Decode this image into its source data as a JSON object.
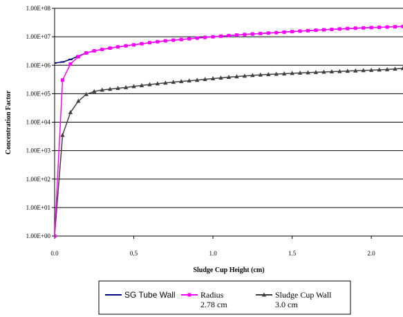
{
  "chart_data": {
    "type": "line",
    "xlabel": "Sludge Cup Height (cm)",
    "ylabel": "Concentration Factor",
    "xlim": [
      0,
      2.2
    ],
    "ylim": [
      1,
      100000000
    ],
    "yscale": "log",
    "grid": true,
    "legend_position": "bottom",
    "x_ticks": [
      "0.0",
      "0.5",
      "1.0",
      "1.5",
      "2.0"
    ],
    "x_tick_values": [
      0,
      0.5,
      1.0,
      1.5,
      2.0
    ],
    "y_ticks": [
      "1.00E+00",
      "1.00E+01",
      "1.00E+02",
      "1.00E+03",
      "1.00E+04",
      "1.00E+05",
      "1.00E+06",
      "1.00E+07",
      "1.00E+08"
    ],
    "y_tick_values": [
      1,
      10,
      100,
      1000,
      10000,
      100000,
      1000000,
      10000000,
      100000000
    ],
    "series": [
      {
        "name": "SG Tube Wall",
        "color": "#000080",
        "marker": "dash",
        "x": [
          0.0,
          0.05,
          0.1,
          0.15,
          0.2,
          0.25,
          0.3,
          0.35,
          0.4,
          0.45,
          0.5,
          0.55,
          0.6,
          0.65,
          0.7,
          0.75,
          0.8,
          0.85,
          0.9,
          0.95,
          1.0,
          1.05,
          1.1,
          1.15,
          1.2,
          1.25,
          1.3,
          1.35,
          1.4,
          1.45,
          1.5,
          1.55,
          1.6,
          1.65,
          1.7,
          1.75,
          1.8,
          1.85,
          1.9,
          1.95,
          2.0,
          2.05,
          2.1,
          2.15,
          2.2
        ],
        "y": [
          1200000,
          1300000,
          1600000,
          2100000,
          2700000,
          3200000,
          3600000,
          4000000,
          4400000,
          4800000,
          5200000,
          5700000,
          6200000,
          6700000,
          7200000,
          7600000,
          8000000,
          8500000,
          9000000,
          9500000,
          10000000,
          10500000,
          11000000,
          11500000,
          12000000,
          12500000,
          13000000,
          13500000,
          14000000,
          14600000,
          15200000,
          15800000,
          16400000,
          17000000,
          17600000,
          18200000,
          18800000,
          19400000,
          20000000,
          20500000,
          21000000,
          21500000,
          22000000,
          22500000,
          23000000
        ]
      },
      {
        "name": "Radius 2.78 cm",
        "name_lines": [
          "Radius",
          "2.78 cm"
        ],
        "color": "#ff00ff",
        "marker": "square",
        "x": [
          0.0,
          0.05,
          0.1,
          0.15,
          0.2,
          0.25,
          0.3,
          0.35,
          0.4,
          0.45,
          0.5,
          0.55,
          0.6,
          0.65,
          0.7,
          0.75,
          0.8,
          0.85,
          0.9,
          0.95,
          1.0,
          1.05,
          1.1,
          1.15,
          1.2,
          1.25,
          1.3,
          1.35,
          1.4,
          1.45,
          1.5,
          1.55,
          1.6,
          1.65,
          1.7,
          1.75,
          1.8,
          1.85,
          1.9,
          1.95,
          2.0,
          2.05,
          2.1,
          2.15,
          2.2
        ],
        "y": [
          1,
          300000,
          1100000,
          2000000,
          2700000,
          3200000,
          3600000,
          4000000,
          4400000,
          4800000,
          5200000,
          5700000,
          6200000,
          6700000,
          7200000,
          7600000,
          8000000,
          8500000,
          9000000,
          9500000,
          10000000,
          10500000,
          11000000,
          11500000,
          12000000,
          12500000,
          13000000,
          13500000,
          14000000,
          14600000,
          15200000,
          15800000,
          16400000,
          17000000,
          17600000,
          18200000,
          18800000,
          19400000,
          20000000,
          20500000,
          21000000,
          21500000,
          22000000,
          22500000,
          23000000
        ]
      },
      {
        "name": "Sludge Cup Wall 3.0 cm",
        "name_lines": [
          "Sludge Cup Wall",
          "3.0 cm"
        ],
        "color": "#404040",
        "marker": "triangle",
        "x": [
          0.0,
          0.05,
          0.1,
          0.15,
          0.2,
          0.25,
          0.3,
          0.35,
          0.4,
          0.45,
          0.5,
          0.55,
          0.6,
          0.65,
          0.7,
          0.75,
          0.8,
          0.85,
          0.9,
          0.95,
          1.0,
          1.05,
          1.1,
          1.15,
          1.2,
          1.25,
          1.3,
          1.35,
          1.4,
          1.45,
          1.5,
          1.55,
          1.6,
          1.65,
          1.7,
          1.75,
          1.8,
          1.85,
          1.9,
          1.95,
          2.0,
          2.05,
          2.1,
          2.15,
          2.2
        ],
        "y": [
          1,
          3500,
          22000,
          55000,
          95000,
          120000,
          135000,
          145000,
          155000,
          165000,
          180000,
          195000,
          210000,
          225000,
          240000,
          255000,
          270000,
          285000,
          300000,
          320000,
          340000,
          360000,
          380000,
          400000,
          420000,
          440000,
          460000,
          475000,
          490000,
          505000,
          520000,
          535000,
          550000,
          565000,
          580000,
          595000,
          610000,
          625000,
          640000,
          655000,
          670000,
          690000,
          710000,
          740000,
          780000
        ]
      }
    ]
  }
}
